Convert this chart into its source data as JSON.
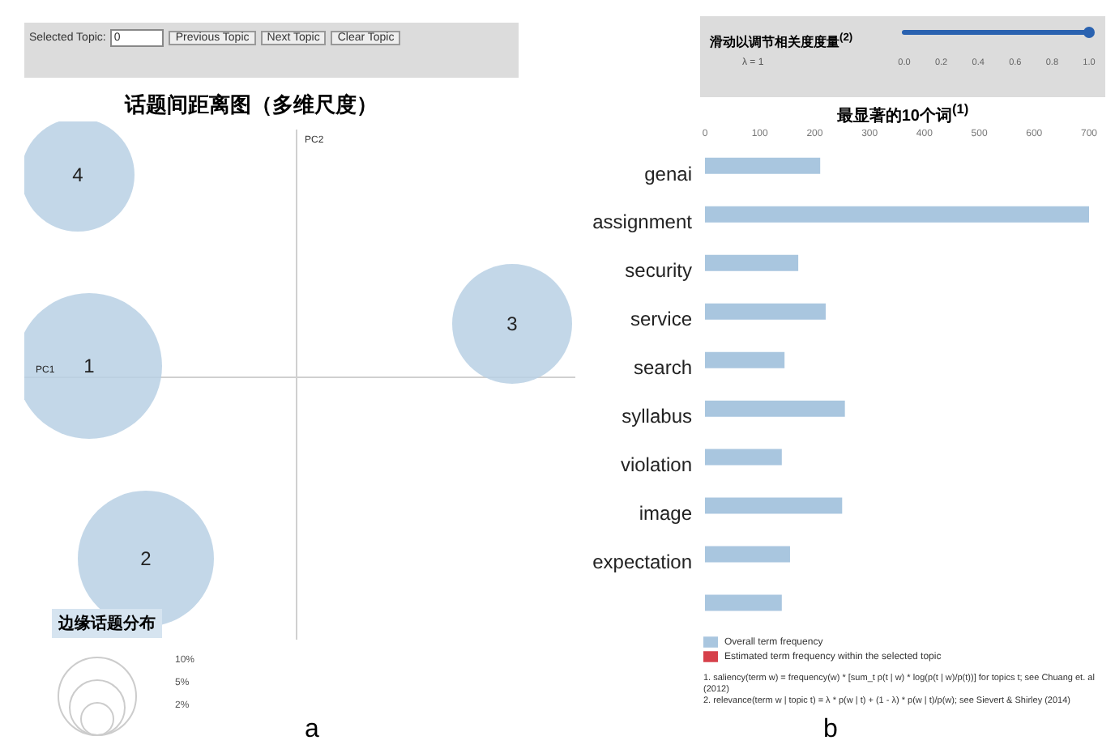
{
  "chart_data": [
    {
      "type": "other",
      "title": "话题间距离图（多维尺度）",
      "xlabel": "PC1",
      "ylabel": "PC2",
      "legend_title": "边缘话题分布",
      "categories": [
        "1",
        "2",
        "3",
        "4"
      ],
      "annotations": [
        "Selected Topic:",
        "0",
        "Previous Topic",
        "Next Topic",
        "Clear Topic",
        "2%",
        "5%",
        "10%",
        "a"
      ]
    },
    {
      "type": "bar",
      "orientation": "horizontal",
      "title": "最显著的10个词$^{(1)}$",
      "categories": [
        "genai",
        "assignment",
        "security",
        "service",
        "search",
        "syllabus",
        "violation",
        "image",
        "expectation",
        null
      ],
      "series": [
        {
          "name": "Overall term frequency",
          "color": "#a9c6df",
          "values": [
            210,
            700,
            170,
            220,
            145,
            255,
            140,
            250,
            155,
            140
          ]
        },
        {
          "name": "Estimated term frequency within the selected topic",
          "color": "#d6404a",
          "values": [
            null,
            null,
            null,
            null,
            null,
            null,
            null,
            null,
            null,
            null
          ]
        }
      ],
      "xlim": [
        0,
        700
      ],
      "xticks": [
        0,
        100,
        200,
        300,
        400,
        500,
        600,
        700
      ],
      "legend": "bottom left",
      "annotations": [
        "滑动以调节相关度度量$^{(2)}$",
        "λ = 1",
        "0.0",
        "0.2",
        "0.4",
        "0.6",
        "0.8",
        "1.0",
        "1. saliency(term w) = frequency(w) * [sum_t p(t | w) * log(p(t | w)/p(t))] for topics t; see Chuang et. al (2012)",
        "2. relevance(term w | topic t) = λ * p(w | t) + (1 - λ) * p(w | t)/p(w); see Sievert & Shirley (2014)",
        "b"
      ]
    }
  ]
}
